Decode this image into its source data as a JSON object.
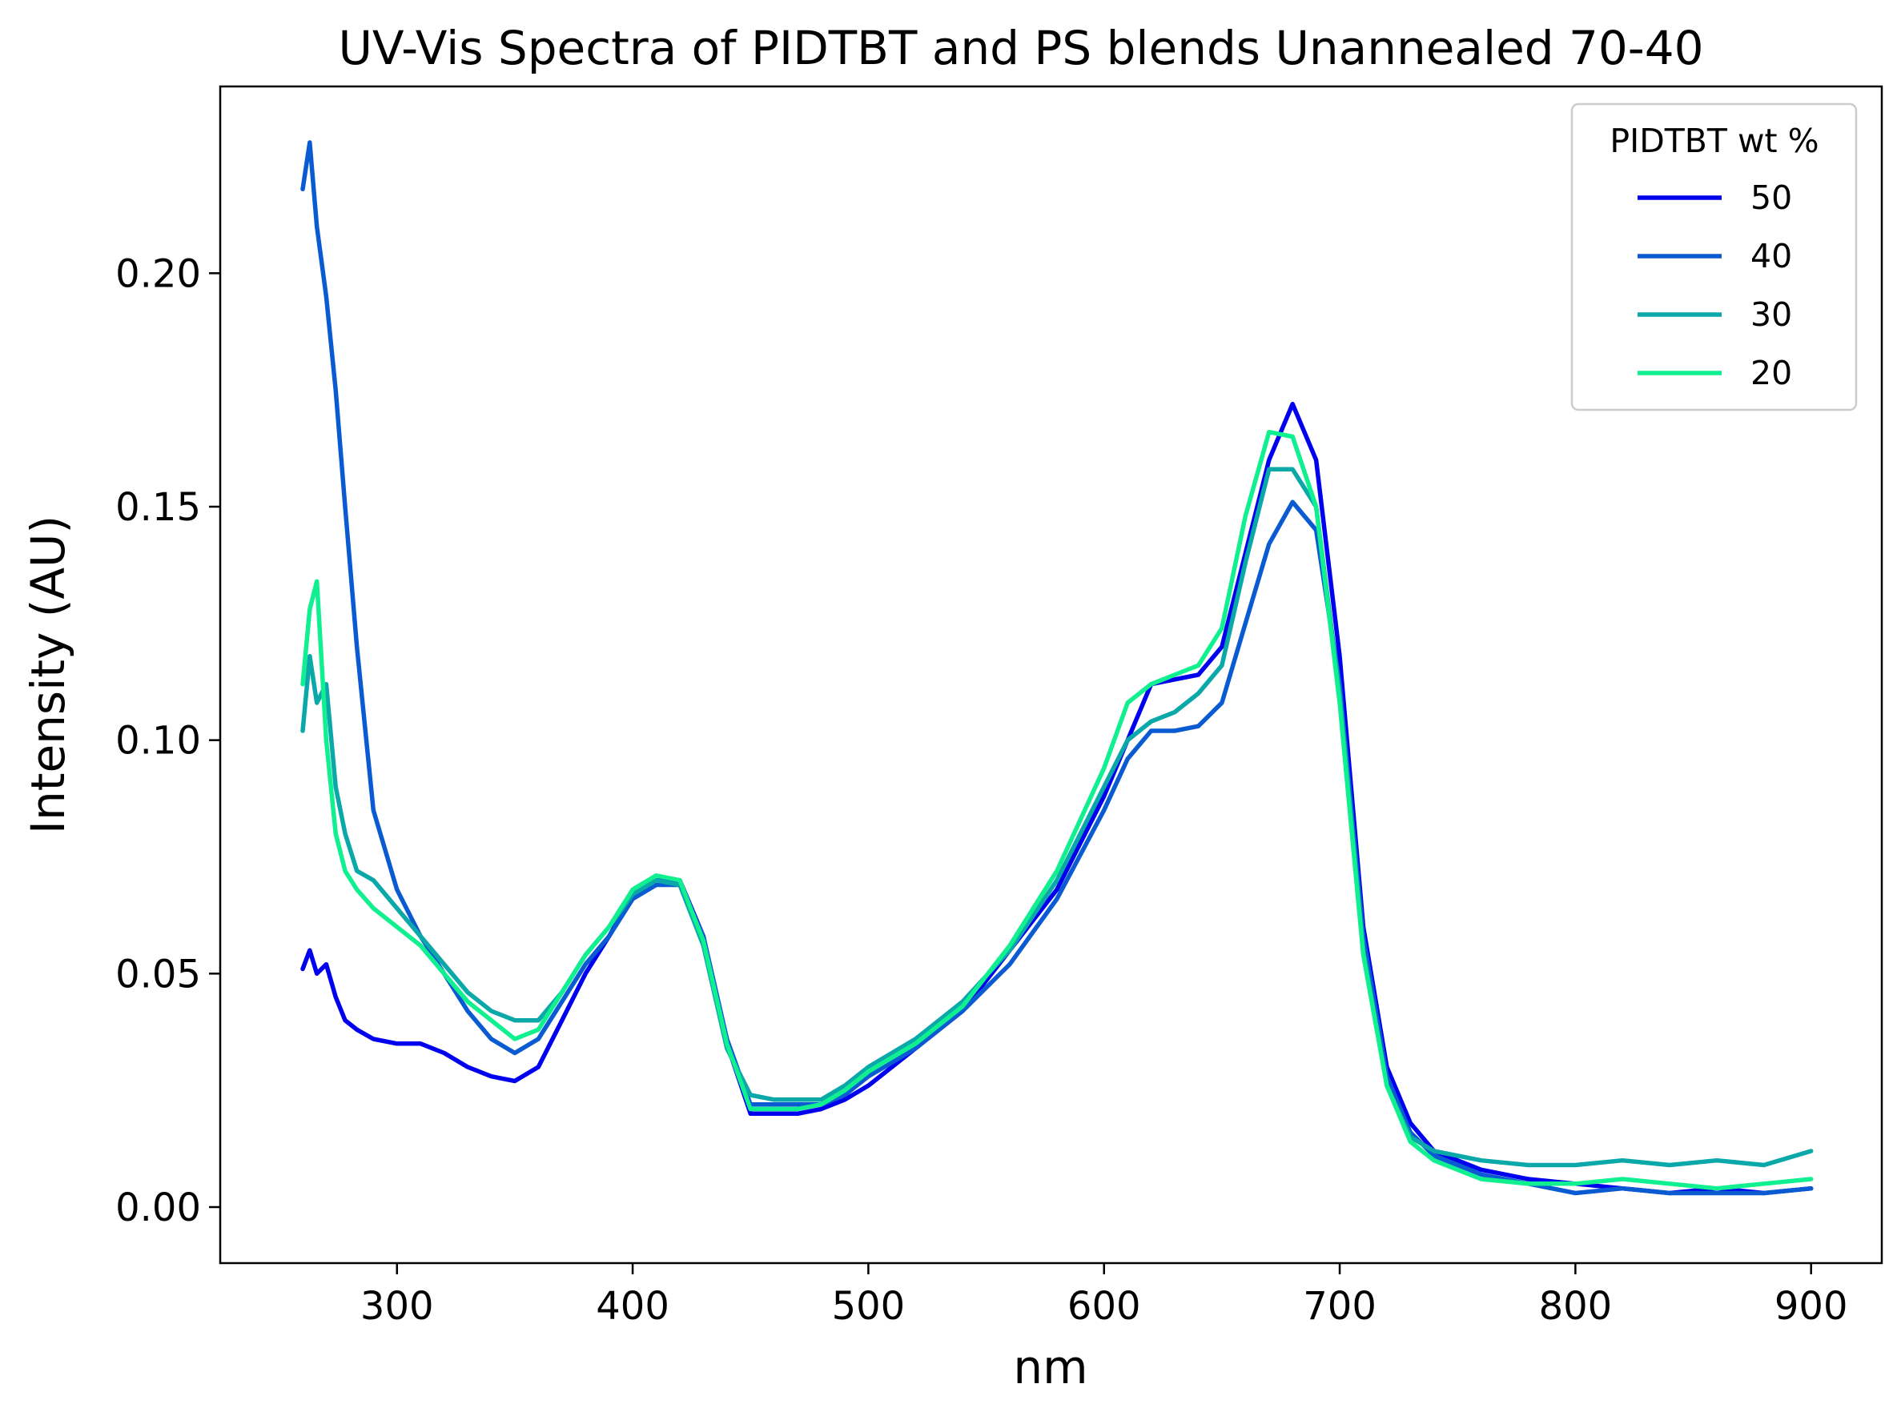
{
  "chart_data": {
    "type": "line",
    "title": "UV-Vis Spectra of PIDTBT and PS blends Unannealed 70-40",
    "xlabel": "nm",
    "ylabel": "Intensity (AU)",
    "xlim": [
      225,
      930
    ],
    "ylim": [
      -0.012,
      0.24
    ],
    "xticks": [
      300,
      400,
      500,
      600,
      700,
      800,
      900
    ],
    "yticks": [
      0.0,
      0.05,
      0.1,
      0.15,
      0.2
    ],
    "xtick_labels": [
      "300",
      "400",
      "500",
      "600",
      "700",
      "800",
      "900"
    ],
    "ytick_labels": [
      "0.00",
      "0.05",
      "0.10",
      "0.15",
      "0.20"
    ],
    "grid": false,
    "legend": {
      "title": "PIDTBT wt %",
      "position": "top-right"
    },
    "series": [
      {
        "name": "50",
        "color": "#0000ee",
        "x": [
          260,
          263,
          266,
          270,
          274,
          278,
          283,
          290,
          300,
          310,
          320,
          330,
          340,
          350,
          360,
          370,
          380,
          390,
          400,
          410,
          420,
          430,
          440,
          450,
          460,
          470,
          480,
          490,
          500,
          520,
          540,
          560,
          580,
          600,
          610,
          620,
          630,
          640,
          650,
          660,
          670,
          680,
          690,
          700,
          710,
          720,
          730,
          740,
          760,
          780,
          800,
          820,
          840,
          860,
          880,
          900
        ],
        "y": [
          0.051,
          0.055,
          0.05,
          0.052,
          0.045,
          0.04,
          0.038,
          0.036,
          0.035,
          0.035,
          0.033,
          0.03,
          0.028,
          0.027,
          0.03,
          0.04,
          0.05,
          0.058,
          0.067,
          0.07,
          0.07,
          0.058,
          0.035,
          0.02,
          0.02,
          0.02,
          0.021,
          0.023,
          0.026,
          0.034,
          0.042,
          0.055,
          0.068,
          0.088,
          0.1,
          0.112,
          0.113,
          0.114,
          0.12,
          0.14,
          0.16,
          0.172,
          0.16,
          0.118,
          0.06,
          0.03,
          0.018,
          0.012,
          0.008,
          0.006,
          0.005,
          0.004,
          0.003,
          0.004,
          0.003,
          0.004
        ]
      },
      {
        "name": "40",
        "color": "#0a5ad2",
        "x": [
          260,
          263,
          266,
          270,
          274,
          278,
          283,
          290,
          300,
          310,
          320,
          330,
          340,
          350,
          360,
          370,
          380,
          390,
          400,
          410,
          420,
          430,
          440,
          450,
          460,
          470,
          480,
          490,
          500,
          520,
          540,
          560,
          580,
          600,
          610,
          620,
          630,
          640,
          650,
          660,
          670,
          680,
          690,
          700,
          710,
          720,
          730,
          740,
          760,
          780,
          800,
          820,
          840,
          860,
          880,
          900
        ],
        "y": [
          0.218,
          0.228,
          0.21,
          0.195,
          0.175,
          0.15,
          0.12,
          0.085,
          0.068,
          0.058,
          0.05,
          0.042,
          0.036,
          0.033,
          0.036,
          0.044,
          0.052,
          0.058,
          0.066,
          0.069,
          0.069,
          0.058,
          0.036,
          0.022,
          0.022,
          0.022,
          0.022,
          0.024,
          0.028,
          0.034,
          0.042,
          0.052,
          0.066,
          0.085,
          0.096,
          0.102,
          0.102,
          0.103,
          0.108,
          0.125,
          0.142,
          0.151,
          0.145,
          0.112,
          0.058,
          0.028,
          0.016,
          0.011,
          0.007,
          0.005,
          0.003,
          0.004,
          0.003,
          0.003,
          0.003,
          0.004
        ]
      },
      {
        "name": "30",
        "color": "#0aa8a8",
        "x": [
          260,
          263,
          266,
          270,
          274,
          278,
          283,
          290,
          300,
          310,
          320,
          330,
          340,
          350,
          360,
          370,
          380,
          390,
          400,
          410,
          420,
          430,
          440,
          450,
          460,
          470,
          480,
          490,
          500,
          520,
          540,
          560,
          580,
          600,
          610,
          620,
          630,
          640,
          650,
          660,
          670,
          680,
          690,
          700,
          710,
          720,
          730,
          740,
          760,
          780,
          800,
          820,
          840,
          860,
          880,
          900
        ],
        "y": [
          0.102,
          0.118,
          0.108,
          0.112,
          0.09,
          0.08,
          0.072,
          0.07,
          0.064,
          0.058,
          0.052,
          0.046,
          0.042,
          0.04,
          0.04,
          0.046,
          0.054,
          0.06,
          0.067,
          0.07,
          0.069,
          0.056,
          0.034,
          0.024,
          0.023,
          0.023,
          0.023,
          0.026,
          0.03,
          0.036,
          0.044,
          0.055,
          0.07,
          0.09,
          0.1,
          0.104,
          0.106,
          0.11,
          0.116,
          0.138,
          0.158,
          0.158,
          0.15,
          0.11,
          0.055,
          0.026,
          0.015,
          0.012,
          0.01,
          0.009,
          0.009,
          0.01,
          0.009,
          0.01,
          0.009,
          0.012
        ]
      },
      {
        "name": "20",
        "color": "#10f090",
        "x": [
          260,
          263,
          266,
          270,
          274,
          278,
          283,
          290,
          300,
          310,
          320,
          330,
          340,
          350,
          360,
          370,
          380,
          390,
          400,
          410,
          420,
          430,
          440,
          450,
          460,
          470,
          480,
          490,
          500,
          520,
          540,
          560,
          580,
          600,
          610,
          620,
          630,
          640,
          650,
          660,
          670,
          680,
          690,
          700,
          710,
          720,
          730,
          740,
          760,
          780,
          800,
          820,
          840,
          860,
          880,
          900
        ],
        "y": [
          0.112,
          0.128,
          0.134,
          0.1,
          0.08,
          0.072,
          0.068,
          0.064,
          0.06,
          0.056,
          0.05,
          0.044,
          0.04,
          0.036,
          0.038,
          0.046,
          0.054,
          0.06,
          0.068,
          0.071,
          0.07,
          0.057,
          0.035,
          0.021,
          0.021,
          0.021,
          0.022,
          0.025,
          0.029,
          0.035,
          0.043,
          0.056,
          0.072,
          0.094,
          0.108,
          0.112,
          0.114,
          0.116,
          0.124,
          0.148,
          0.166,
          0.165,
          0.15,
          0.108,
          0.054,
          0.026,
          0.014,
          0.01,
          0.006,
          0.005,
          0.005,
          0.006,
          0.005,
          0.004,
          0.005,
          0.006
        ]
      }
    ]
  }
}
